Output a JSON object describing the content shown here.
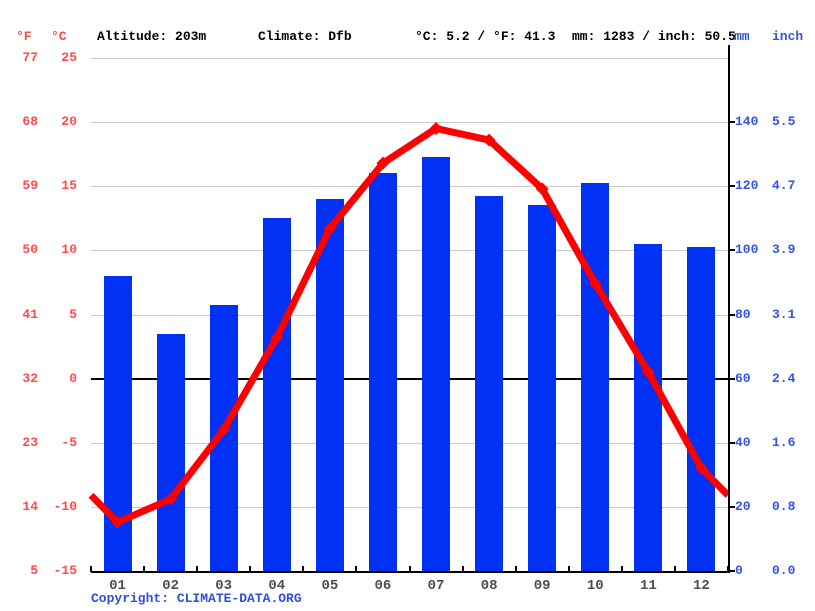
{
  "header": {
    "f_unit": "°F",
    "c_unit": "°C",
    "altitude": "Altitude: 203m",
    "climate": "Climate: Dfb",
    "temp_summary": "°C: 5.2 / °F: 41.3",
    "precip_summary": "mm: 1283 / inch: 50.5",
    "mm_unit": "mm",
    "inch_unit": "inch"
  },
  "footer": {
    "copyright_label": "Copyright:",
    "copyright_link": "CLIMATE-DATA.ORG"
  },
  "colors": {
    "bar_blue": "#0031f5",
    "line_red": "#ff0000",
    "axis_text_red": "#ff4a4a",
    "axis_text_blue": "#3353e0",
    "month_text": "#4d4d4d",
    "gridline": "#c9c9c9",
    "axis_black": "#000000",
    "copyright_blue": "#2e4fd8"
  },
  "chart_data": {
    "type": "bar",
    "title": "",
    "categories": [
      "01",
      "02",
      "03",
      "04",
      "05",
      "06",
      "07",
      "08",
      "09",
      "10",
      "11",
      "12"
    ],
    "series": [
      {
        "name": "precipitation",
        "type": "bar",
        "unit": "mm",
        "values": [
          92,
          74,
          83,
          110,
          116,
          124,
          129,
          117,
          114,
          121,
          102,
          101
        ]
      },
      {
        "name": "temperature",
        "type": "line",
        "unit": "°C",
        "values": [
          -11.2,
          -9.4,
          -4.0,
          3.2,
          11.7,
          16.8,
          19.5,
          18.6,
          14.8,
          7.4,
          0.5,
          -7.0
        ],
        "edge_value": -9.1
      }
    ],
    "left_axis": {
      "f_ticks": [
        "77",
        "68",
        "59",
        "50",
        "41",
        "32",
        "23",
        "14",
        "5"
      ],
      "c_ticks": [
        "25",
        "20",
        "15",
        "10",
        "5",
        "0",
        "-5",
        "-10",
        "-15"
      ],
      "c_range": [
        -15,
        25
      ],
      "c_step": 5
    },
    "right_axis": {
      "mm_ticks": [
        "140",
        "120",
        "100",
        "80",
        "60",
        "40",
        "20",
        "0"
      ],
      "inch_ticks": [
        "5.5",
        "4.7",
        "3.9",
        "3.1",
        "2.4",
        "1.6",
        "0.8",
        "0.0"
      ],
      "mm_range": [
        0,
        160
      ],
      "mm_step": 20
    },
    "grid": true,
    "legend_position": "none"
  }
}
